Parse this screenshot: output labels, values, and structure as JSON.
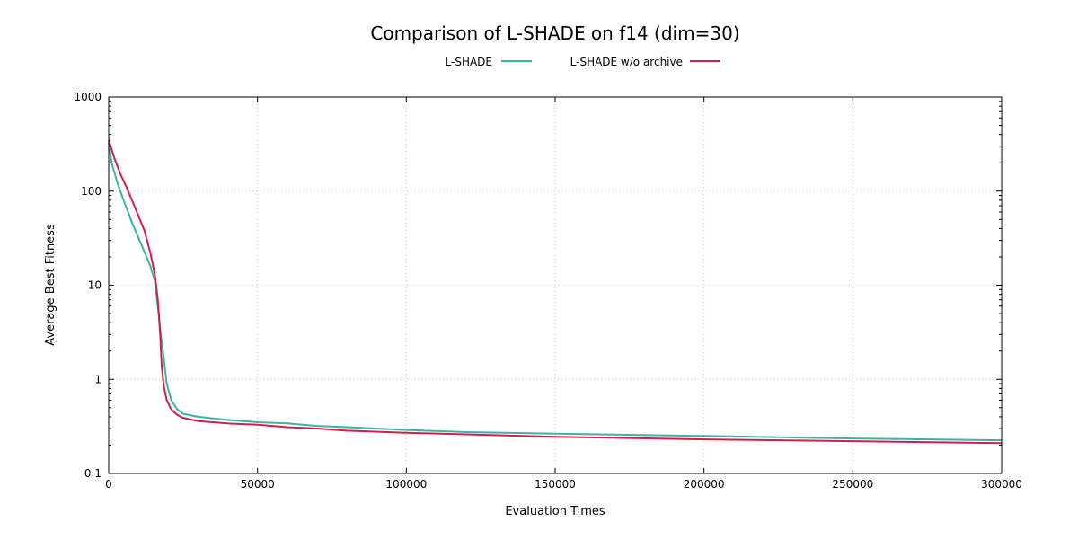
{
  "chart_data": {
    "type": "line",
    "title": "Comparison of L-SHADE on f14 (dim=30)",
    "xlabel": "Evaluation Times",
    "ylabel": "Average Best Fitness",
    "xlim": [
      0,
      300000
    ],
    "ylim": [
      0.1,
      1000
    ],
    "yscale": "log",
    "grid": true,
    "legend_position": "top-center",
    "x_ticks": [
      0,
      50000,
      100000,
      150000,
      200000,
      250000,
      300000
    ],
    "y_ticks": [
      0.1,
      1,
      10,
      100,
      1000
    ],
    "x_tick_labels": [
      "0",
      "50000",
      "100000",
      "150000",
      "200000",
      "250000",
      "300000"
    ],
    "y_tick_labels": [
      "0.1",
      "1",
      "10",
      "100",
      "1000"
    ],
    "series": [
      {
        "name": "L-SHADE",
        "color": "#3bb3a8",
        "points": [
          [
            0,
            330
          ],
          [
            1000,
            200
          ],
          [
            3000,
            120
          ],
          [
            5000,
            80
          ],
          [
            8000,
            45
          ],
          [
            11000,
            27
          ],
          [
            14000,
            16
          ],
          [
            15500,
            11
          ],
          [
            16500,
            6
          ],
          [
            17500,
            3
          ],
          [
            18500,
            1.7
          ],
          [
            19500,
            0.9
          ],
          [
            21000,
            0.6
          ],
          [
            23000,
            0.48
          ],
          [
            25000,
            0.43
          ],
          [
            30000,
            0.4
          ],
          [
            40000,
            0.37
          ],
          [
            50000,
            0.35
          ],
          [
            60000,
            0.34
          ],
          [
            70000,
            0.32
          ],
          [
            80000,
            0.31
          ],
          [
            100000,
            0.29
          ],
          [
            120000,
            0.275
          ],
          [
            150000,
            0.265
          ],
          [
            200000,
            0.25
          ],
          [
            250000,
            0.235
          ],
          [
            300000,
            0.225
          ]
        ]
      },
      {
        "name": "L-SHADE w/o archive",
        "color": "#d81b47",
        "points": [
          [
            0,
            350
          ],
          [
            2000,
            220
          ],
          [
            4000,
            150
          ],
          [
            6000,
            110
          ],
          [
            9000,
            65
          ],
          [
            12000,
            38
          ],
          [
            14000,
            22
          ],
          [
            15500,
            13
          ],
          [
            16500,
            7
          ],
          [
            17300,
            3
          ],
          [
            17800,
            1.4
          ],
          [
            18500,
            0.85
          ],
          [
            19500,
            0.6
          ],
          [
            21000,
            0.48
          ],
          [
            23000,
            0.42
          ],
          [
            25000,
            0.39
          ],
          [
            30000,
            0.36
          ],
          [
            40000,
            0.34
          ],
          [
            50000,
            0.33
          ],
          [
            60000,
            0.31
          ],
          [
            70000,
            0.3
          ],
          [
            80000,
            0.285
          ],
          [
            100000,
            0.27
          ],
          [
            120000,
            0.26
          ],
          [
            150000,
            0.245
          ],
          [
            200000,
            0.23
          ],
          [
            250000,
            0.22
          ],
          [
            300000,
            0.21
          ]
        ]
      }
    ]
  }
}
